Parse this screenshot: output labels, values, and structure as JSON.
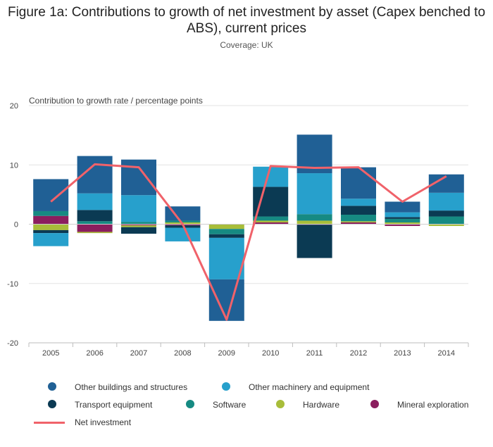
{
  "title": "Figure 1a: Contributions to growth of net investment by asset (Capex benched to ABS), current prices",
  "subtitle": "Coverage: UK",
  "chart_data": {
    "type": "bar",
    "stacked": true,
    "categories": [
      "2005",
      "2006",
      "2007",
      "2008",
      "2009",
      "2010",
      "2011",
      "2012",
      "2013",
      "2014"
    ],
    "ylabel": "Contribution to growth rate / percentage points",
    "ylim": [
      -20,
      20
    ],
    "yticks": [
      20,
      10,
      0,
      -10,
      -20
    ],
    "series": [
      {
        "name": "Mineral exploration",
        "color": "#8b1e5e",
        "values": [
          1.4,
          -1.3,
          -0.2,
          -0.2,
          0,
          0.3,
          -0.1,
          0.3,
          -0.3,
          0
        ]
      },
      {
        "name": "Hardware",
        "color": "#a8bd3a",
        "values": [
          -1.0,
          -0.2,
          -0.3,
          0.3,
          -0.8,
          0.3,
          0.6,
          0.2,
          0.3,
          -0.3
        ]
      },
      {
        "name": "Software",
        "color": "#168a82",
        "values": [
          0.8,
          0.5,
          0.4,
          0.3,
          -0.9,
          0.7,
          1.1,
          1.1,
          0.6,
          1.3
        ]
      },
      {
        "name": "Transport equipment",
        "color": "#0b3a53",
        "values": [
          -0.5,
          1.9,
          -1.1,
          -0.4,
          -0.6,
          5.0,
          -5.6,
          1.5,
          0.3,
          1.0
        ]
      },
      {
        "name": "Other machinery and equipment",
        "color": "#27a0cc",
        "values": [
          -2.2,
          2.8,
          4.5,
          -2.3,
          -7.0,
          3.4,
          6.9,
          1.2,
          0.8,
          3.0
        ]
      },
      {
        "name": "Other buildings and structures",
        "color": "#206095",
        "values": [
          5.4,
          6.3,
          6.0,
          2.4,
          -7.0,
          0,
          6.5,
          5.3,
          1.8,
          3.1
        ]
      }
    ],
    "line": {
      "name": "Net investment",
      "color": "#f0626a",
      "values": [
        3.8,
        10.1,
        9.6,
        0.0,
        -16.1,
        9.8,
        9.5,
        9.6,
        3.8,
        8.1
      ]
    },
    "legend_order": [
      "Other buildings and structures",
      "Other machinery and equipment",
      "Transport equipment",
      "Software",
      "Hardware",
      "Mineral exploration",
      "Net investment"
    ],
    "grid": true,
    "legend_position": "bottom"
  }
}
